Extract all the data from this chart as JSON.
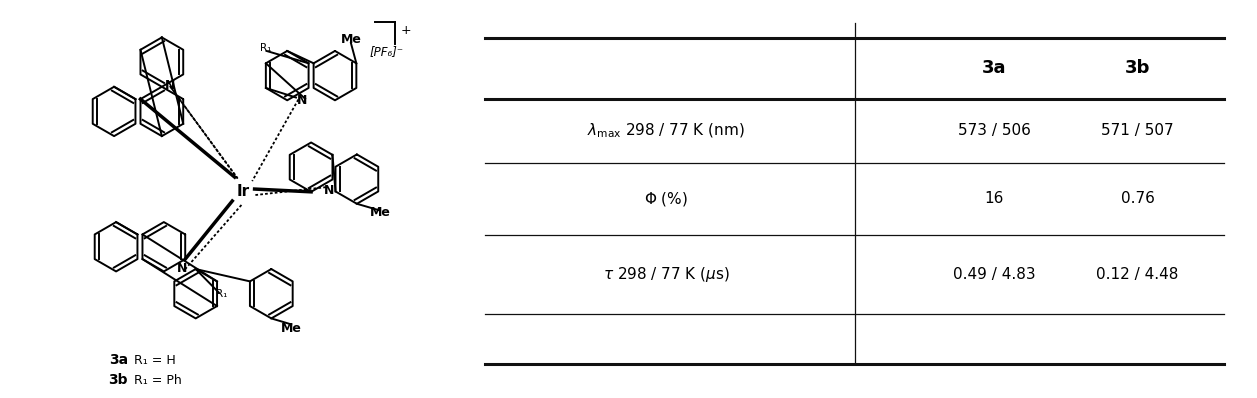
{
  "col3a": "3a",
  "col3b": "3b",
  "table_rows": [
    [
      "λ_max 298 / 77 K (nm)",
      "573 / 506",
      "571 / 507"
    ],
    [
      "Φ (%)",
      "16",
      "0.76"
    ],
    [
      "τ 298 / 77 K (μs)",
      "0.49 / 4.83",
      "0.12 / 4.48"
    ]
  ],
  "label_3a": "3a",
  "label_3b": "3b",
  "label_R1_H": "R₁ = H",
  "label_R1_Ph": "R₁ = Ph",
  "bg_color": "#ffffff"
}
